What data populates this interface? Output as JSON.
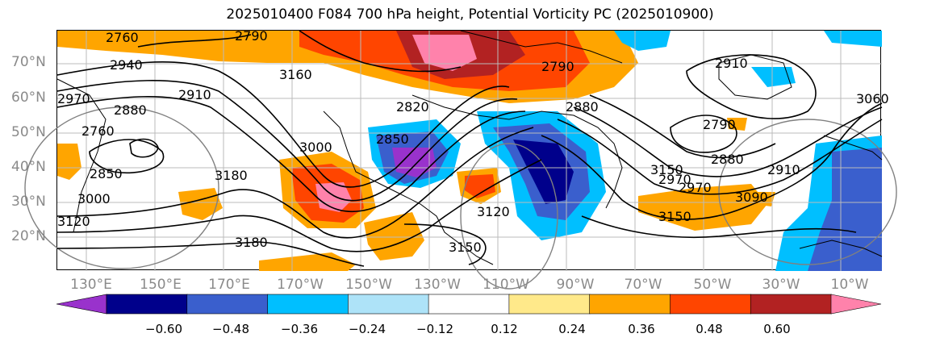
{
  "title": "2025010400 F084 700 hPa height, Potential Vorticity PC (2025010900)",
  "lat_labels": [
    "70°N",
    "60°N",
    "50°N",
    "40°N",
    "30°N",
    "20°N"
  ],
  "lon_labels": [
    "130°E",
    "150°E",
    "170°E",
    "170°W",
    "150°W",
    "130°W",
    "110°W",
    "90°W",
    "70°W",
    "50°W",
    "30°W",
    "10°W"
  ],
  "colorbar": {
    "ticks": [
      "−0.60",
      "−0.48",
      "−0.36",
      "−0.24",
      "−0.12",
      "0.12",
      "0.24",
      "0.36",
      "0.48",
      "0.60"
    ],
    "colors": [
      "#9932cc",
      "#00008b",
      "#3a5fcd",
      "#00bfff",
      "#aee3f8",
      "#ffffff",
      "#ffe98a",
      "#ffa500",
      "#ff4500",
      "#b22222",
      "#ff82ab"
    ]
  },
  "contour_labels": [
    "2760",
    "2790",
    "2940",
    "2970",
    "2880",
    "2760",
    "2850",
    "3000",
    "3120",
    "2910",
    "3180",
    "3150",
    "3160",
    "3000",
    "2850",
    "2820",
    "2910",
    "2790",
    "2880",
    "3150",
    "3090",
    "3060",
    "2970",
    "2910",
    "2970",
    "2880",
    "2790",
    "3120",
    "3180",
    "3150"
  ]
}
